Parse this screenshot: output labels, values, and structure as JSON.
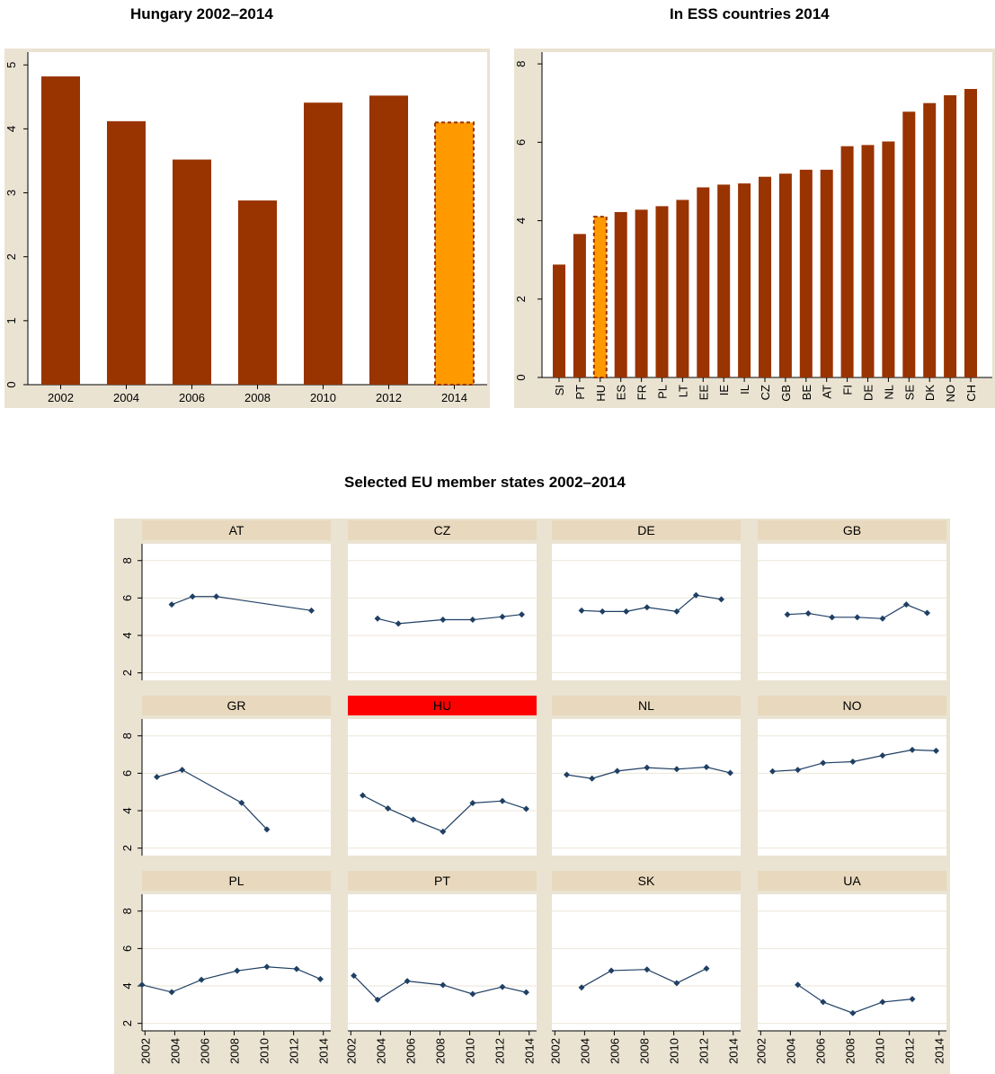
{
  "titles": {
    "hungary": "Hungary 2002–2014",
    "ess": "In ESS countries 2014",
    "panels": "Selected EU member states 2002–2014"
  },
  "colors": {
    "bar": "#993300",
    "highlight_bar": "#FF9900",
    "highlight_border": "#993300",
    "plot_bg": "#FFFFFF",
    "panel_outer_bg": "#EAE3D2",
    "panel_header_bg": "#E8D8BD",
    "highlight_header_bg": "#FF0000",
    "line": "#1F3F64",
    "grid": "#ECE6D6"
  },
  "chart_data": [
    {
      "id": "hungary",
      "type": "bar",
      "title": "Hungary 2002–2014",
      "categories": [
        "2002",
        "2004",
        "2006",
        "2008",
        "2010",
        "2012",
        "2014"
      ],
      "values": [
        4.82,
        4.12,
        3.52,
        2.88,
        4.41,
        4.52,
        4.1
      ],
      "highlight": "2014",
      "ylim": [
        0,
        5.2
      ],
      "yticks": [
        0,
        1,
        2,
        3,
        4,
        5
      ],
      "grid": false
    },
    {
      "id": "ess",
      "type": "bar",
      "title": "In ESS countries 2014",
      "categories": [
        "SI",
        "PT",
        "HU",
        "ES",
        "FR",
        "PL",
        "LT",
        "EE",
        "IE",
        "IL",
        "CZ",
        "GB",
        "BE",
        "AT",
        "FI",
        "DE",
        "NL",
        "SE",
        "DK",
        "NO",
        "CH"
      ],
      "values": [
        2.88,
        3.66,
        4.1,
        4.22,
        4.28,
        4.37,
        4.53,
        4.85,
        4.92,
        4.95,
        5.12,
        5.2,
        5.3,
        5.3,
        5.9,
        5.93,
        6.02,
        6.78,
        7.0,
        7.2,
        7.36
      ],
      "highlight": "HU",
      "ylim": [
        0,
        8.3
      ],
      "yticks": [
        0,
        2,
        4,
        6,
        8
      ],
      "grid": false
    },
    {
      "id": "panels",
      "type": "line",
      "title": "Selected EU member states 2002–2014",
      "xticks": [
        "2002",
        "2004",
        "2006",
        "2008",
        "2010",
        "2012",
        "2014"
      ],
      "yticks": [
        2,
        4,
        6,
        8
      ],
      "xlim": [
        2001.8,
        2014.5
      ],
      "ylim": [
        1.6,
        8.9
      ],
      "grid": true,
      "highlight": "HU",
      "series": [
        {
          "name": "AT",
          "x": [
            2003.8,
            2005.2,
            2006.8,
            2013.2
          ],
          "y": [
            5.65,
            6.08,
            6.08,
            5.33
          ]
        },
        {
          "name": "CZ",
          "x": [
            2003.8,
            2005.2,
            2008.2,
            2010.2,
            2012.2,
            2013.5
          ],
          "y": [
            4.9,
            4.63,
            4.84,
            4.84,
            5.0,
            5.12
          ]
        },
        {
          "name": "DE",
          "x": [
            2003.8,
            2005.2,
            2006.8,
            2008.2,
            2010.2,
            2011.5,
            2013.2
          ],
          "y": [
            5.33,
            5.28,
            5.28,
            5.5,
            5.28,
            6.15,
            5.93
          ]
        },
        {
          "name": "GB",
          "x": [
            2003.8,
            2005.2,
            2006.8,
            2008.5,
            2010.2,
            2011.8,
            2013.2
          ],
          "y": [
            5.12,
            5.18,
            4.97,
            4.97,
            4.9,
            5.65,
            5.2
          ]
        },
        {
          "name": "GR",
          "x": [
            2002.8,
            2004.5,
            2008.5,
            2010.2
          ],
          "y": [
            5.8,
            6.18,
            4.42,
            3.0
          ]
        },
        {
          "name": "HU",
          "x": [
            2002.8,
            2004.5,
            2006.2,
            2008.2,
            2010.2,
            2012.2,
            2013.8
          ],
          "y": [
            4.82,
            4.12,
            3.52,
            2.88,
            4.41,
            4.52,
            4.1
          ]
        },
        {
          "name": "NL",
          "x": [
            2002.8,
            2004.5,
            2006.2,
            2008.2,
            2010.2,
            2012.2,
            2013.8
          ],
          "y": [
            5.92,
            5.72,
            6.12,
            6.3,
            6.22,
            6.33,
            6.02
          ]
        },
        {
          "name": "NO",
          "x": [
            2002.8,
            2004.5,
            2006.2,
            2008.2,
            2010.2,
            2012.2,
            2013.8
          ],
          "y": [
            6.1,
            6.18,
            6.55,
            6.62,
            6.95,
            7.25,
            7.2
          ]
        },
        {
          "name": "PL",
          "x": [
            2001.8,
            2003.8,
            2005.8,
            2008.2,
            2010.2,
            2012.2,
            2013.8
          ],
          "y": [
            4.06,
            3.67,
            4.33,
            4.81,
            5.02,
            4.91,
            4.37
          ]
        },
        {
          "name": "PT",
          "x": [
            2002.2,
            2003.8,
            2005.8,
            2008.2,
            2010.2,
            2012.2,
            2013.8
          ],
          "y": [
            4.55,
            3.26,
            4.26,
            4.05,
            3.57,
            3.95,
            3.66
          ]
        },
        {
          "name": "SK",
          "x": [
            2003.8,
            2005.8,
            2008.2,
            2010.2,
            2012.2
          ],
          "y": [
            3.92,
            4.82,
            4.88,
            4.15,
            4.93
          ]
        },
        {
          "name": "UA",
          "x": [
            2004.5,
            2006.2,
            2008.2,
            2010.2,
            2012.2
          ],
          "y": [
            4.06,
            3.14,
            2.55,
            3.14,
            3.3
          ]
        }
      ]
    }
  ]
}
